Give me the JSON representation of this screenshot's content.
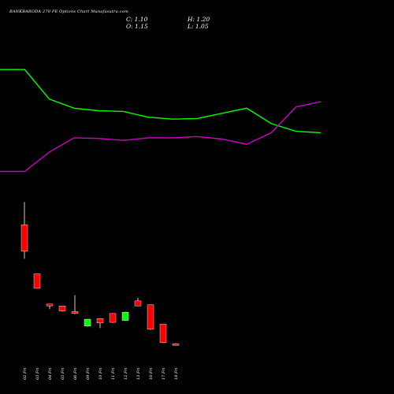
{
  "chart_data": {
    "type": "candlestick",
    "title": "BANKBARODA 270 PE Options Chart Munafasutra.com",
    "ohlc_readout": {
      "o": "C: 1.10",
      "h": "H: 1.20",
      "c": "O: 1.15",
      "l": "L: 1.05"
    },
    "x_labels": [
      "02 Fri",
      "03 Fri",
      "04 Fri",
      "05 Fri",
      "06 Fri",
      "09 Fri",
      "10 Fri",
      "11 Fri",
      "12 Fri",
      "13 Fri",
      "16 Fri",
      "17 Fri",
      "18 Fri"
    ],
    "candles": [
      {
        "o": 10.6,
        "h": 12.4,
        "l": 7.9,
        "c": 8.5
      },
      {
        "o": 6.7,
        "h": 6.7,
        "l": 5.55,
        "c": 5.55
      },
      {
        "o": 4.3,
        "h": 4.3,
        "l": 3.9,
        "c": 4.15
      },
      {
        "o": 4.15,
        "h": 4.15,
        "l": 3.7,
        "c": 3.75
      },
      {
        "o": 3.7,
        "h": 5.0,
        "l": 3.5,
        "c": 3.55
      },
      {
        "o": 2.55,
        "h": 3.1,
        "l": 2.5,
        "c": 3.1
      },
      {
        "o": 3.15,
        "h": 3.15,
        "l": 2.4,
        "c": 2.8
      },
      {
        "o": 3.55,
        "h": 3.55,
        "l": 2.8,
        "c": 2.85
      },
      {
        "o": 3.0,
        "h": 3.7,
        "l": 3.0,
        "c": 3.65
      },
      {
        "o": 4.55,
        "h": 4.8,
        "l": 4.15,
        "c": 4.15
      },
      {
        "o": 4.25,
        "h": 4.25,
        "l": 2.25,
        "c": 2.3
      },
      {
        "o": 2.7,
        "h": 2.7,
        "l": 1.2,
        "c": 1.25
      },
      {
        "o": 1.15,
        "h": 1.2,
        "l": 1.05,
        "c": 1.1
      }
    ],
    "candle_ylim": [
      0.6,
      12.8
    ],
    "series": [
      {
        "values": [
          10.5,
          10.5,
          8.2,
          7.5,
          7.3,
          7.25,
          6.8,
          6.65,
          6.7,
          7.1,
          7.5,
          6.3,
          5.7,
          5.6
        ],
        "color": "#00ff00"
      },
      {
        "values": [
          2.6,
          2.6,
          4.1,
          5.2,
          5.15,
          5.0,
          5.2,
          5.2,
          5.3,
          5.1,
          4.7,
          5.6,
          7.6,
          8.0
        ],
        "color": "#cc00cc"
      }
    ],
    "line_ylim": [
      0,
      11
    ],
    "colors": {
      "up": "#00ff00",
      "down": "#ff0000",
      "wick": "#ffffff",
      "background": "#000000"
    }
  }
}
